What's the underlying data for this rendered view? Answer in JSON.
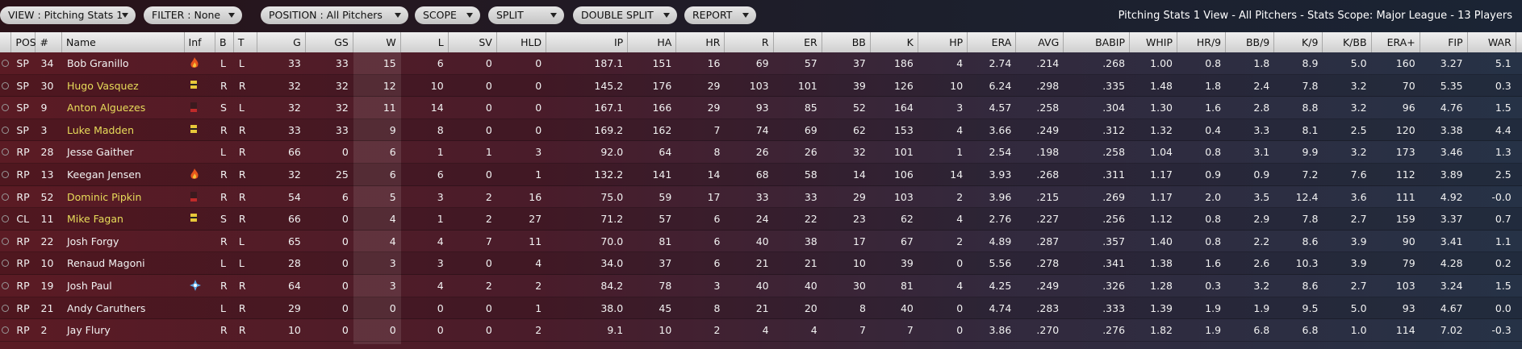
{
  "toolbar": {
    "buttons": [
      "VIEW : Pitching Stats 1",
      "FILTER : None",
      "POSITION : All Pitchers",
      "SCOPE",
      "SPLIT",
      "DOUBLE SPLIT",
      "REPORT"
    ],
    "summary": "Pitching Stats 1 View - All Pitchers - Stats Scope: Major League - 13 Players"
  },
  "table": {
    "columns": [
      "POS",
      "#",
      "Name",
      "Inf",
      "B",
      "T",
      "G",
      "GS",
      "W",
      "L",
      "SV",
      "HLD",
      "IP",
      "HA",
      "HR",
      "R",
      "ER",
      "BB",
      "K",
      "HP",
      "ERA",
      "AVG",
      "BABIP",
      "WHIP",
      "HR/9",
      "BB/9",
      "K/9",
      "K/BB",
      "ERA+",
      "FIP",
      "WAR"
    ],
    "highlight_color": "#e8dc5a",
    "rows": [
      {
        "cells": [
          "SP",
          "34",
          "Bob Granillo",
          "",
          "L",
          "L",
          "33",
          "33",
          "15",
          "6",
          "0",
          "0",
          "187.1",
          "151",
          "16",
          "69",
          "57",
          "37",
          "186",
          "4",
          "2.74",
          ".214",
          ".268",
          "1.00",
          "0.8",
          "1.8",
          "8.9",
          "5.0",
          "160",
          "3.27",
          "5.1"
        ],
        "highlight": false
      },
      {
        "cells": [
          "SP",
          "30",
          "Hugo Vasquez",
          "",
          "R",
          "R",
          "32",
          "32",
          "12",
          "10",
          "0",
          "0",
          "145.2",
          "176",
          "29",
          "103",
          "101",
          "39",
          "126",
          "10",
          "6.24",
          ".298",
          ".335",
          "1.48",
          "1.8",
          "2.4",
          "7.8",
          "3.2",
          "70",
          "5.35",
          "0.3"
        ],
        "highlight": true
      },
      {
        "cells": [
          "SP",
          "9",
          "Anton Alguezes",
          "",
          "S",
          "L",
          "32",
          "32",
          "11",
          "14",
          "0",
          "0",
          "167.1",
          "166",
          "29",
          "93",
          "85",
          "52",
          "164",
          "3",
          "4.57",
          ".258",
          ".304",
          "1.30",
          "1.6",
          "2.8",
          "8.8",
          "3.2",
          "96",
          "4.76",
          "1.5"
        ],
        "highlight": true
      },
      {
        "cells": [
          "SP",
          "3",
          "Luke Madden",
          "",
          "R",
          "R",
          "33",
          "33",
          "9",
          "8",
          "0",
          "0",
          "169.2",
          "162",
          "7",
          "74",
          "69",
          "62",
          "153",
          "4",
          "3.66",
          ".249",
          ".312",
          "1.32",
          "0.4",
          "3.3",
          "8.1",
          "2.5",
          "120",
          "3.38",
          "4.4"
        ],
        "highlight": true
      },
      {
        "cells": [
          "RP",
          "28",
          "Jesse Gaither",
          "",
          "L",
          "R",
          "66",
          "0",
          "6",
          "1",
          "1",
          "3",
          "92.0",
          "64",
          "8",
          "26",
          "26",
          "32",
          "101",
          "1",
          "2.54",
          ".198",
          ".258",
          "1.04",
          "0.8",
          "3.1",
          "9.9",
          "3.2",
          "173",
          "3.46",
          "1.3"
        ],
        "highlight": false
      },
      {
        "cells": [
          "RP",
          "13",
          "Keegan Jensen",
          "",
          "R",
          "R",
          "32",
          "25",
          "6",
          "6",
          "0",
          "1",
          "132.2",
          "141",
          "14",
          "68",
          "58",
          "14",
          "106",
          "14",
          "3.93",
          ".268",
          ".311",
          "1.17",
          "0.9",
          "0.9",
          "7.2",
          "7.6",
          "112",
          "3.89",
          "2.5"
        ],
        "highlight": false
      },
      {
        "cells": [
          "RP",
          "52",
          "Dominic Pipkin",
          "",
          "R",
          "R",
          "54",
          "6",
          "5",
          "3",
          "2",
          "16",
          "75.0",
          "59",
          "17",
          "33",
          "33",
          "29",
          "103",
          "2",
          "3.96",
          ".215",
          ".269",
          "1.17",
          "2.0",
          "3.5",
          "12.4",
          "3.6",
          "111",
          "4.92",
          "-0.0"
        ],
        "highlight": true
      },
      {
        "cells": [
          "CL",
          "11",
          "Mike Fagan",
          "",
          "S",
          "R",
          "66",
          "0",
          "4",
          "1",
          "2",
          "27",
          "71.2",
          "57",
          "6",
          "24",
          "22",
          "23",
          "62",
          "4",
          "2.76",
          ".227",
          ".256",
          "1.12",
          "0.8",
          "2.9",
          "7.8",
          "2.7",
          "159",
          "3.37",
          "0.7"
        ],
        "highlight": true
      },
      {
        "cells": [
          "RP",
          "22",
          "Josh Forgy",
          "",
          "R",
          "L",
          "65",
          "0",
          "4",
          "4",
          "7",
          "11",
          "70.0",
          "81",
          "6",
          "40",
          "38",
          "17",
          "67",
          "2",
          "4.89",
          ".287",
          ".357",
          "1.40",
          "0.8",
          "2.2",
          "8.6",
          "3.9",
          "90",
          "3.41",
          "1.1"
        ],
        "highlight": false
      },
      {
        "cells": [
          "RP",
          "10",
          "Renaud Magoni",
          "",
          "L",
          "L",
          "28",
          "0",
          "3",
          "3",
          "0",
          "4",
          "34.0",
          "37",
          "6",
          "21",
          "21",
          "10",
          "39",
          "0",
          "5.56",
          ".278",
          ".341",
          "1.38",
          "1.6",
          "2.6",
          "10.3",
          "3.9",
          "79",
          "4.28",
          "0.2"
        ],
        "highlight": false
      },
      {
        "cells": [
          "RP",
          "19",
          "Josh Paul",
          "",
          "R",
          "R",
          "64",
          "0",
          "3",
          "4",
          "2",
          "2",
          "84.2",
          "78",
          "3",
          "40",
          "40",
          "30",
          "81",
          "4",
          "4.25",
          ".249",
          ".326",
          "1.28",
          "0.3",
          "3.2",
          "8.6",
          "2.7",
          "103",
          "3.24",
          "1.5"
        ],
        "highlight": false
      },
      {
        "cells": [
          "RP",
          "21",
          "Andy Caruthers",
          "",
          "L",
          "R",
          "29",
          "0",
          "0",
          "0",
          "0",
          "1",
          "38.0",
          "45",
          "8",
          "21",
          "20",
          "8",
          "40",
          "0",
          "4.74",
          ".283",
          ".333",
          "1.39",
          "1.9",
          "1.9",
          "9.5",
          "5.0",
          "93",
          "4.67",
          "0.0"
        ],
        "highlight": false
      },
      {
        "cells": [
          "RP",
          "2",
          "Jay Flury",
          "",
          "R",
          "R",
          "10",
          "0",
          "0",
          "0",
          "0",
          "2",
          "9.1",
          "10",
          "2",
          "4",
          "4",
          "7",
          "7",
          "0",
          "3.86",
          ".270",
          ".276",
          "1.82",
          "1.9",
          "6.8",
          "6.8",
          "1.0",
          "114",
          "7.02",
          "-0.3"
        ],
        "highlight": false
      }
    ]
  }
}
